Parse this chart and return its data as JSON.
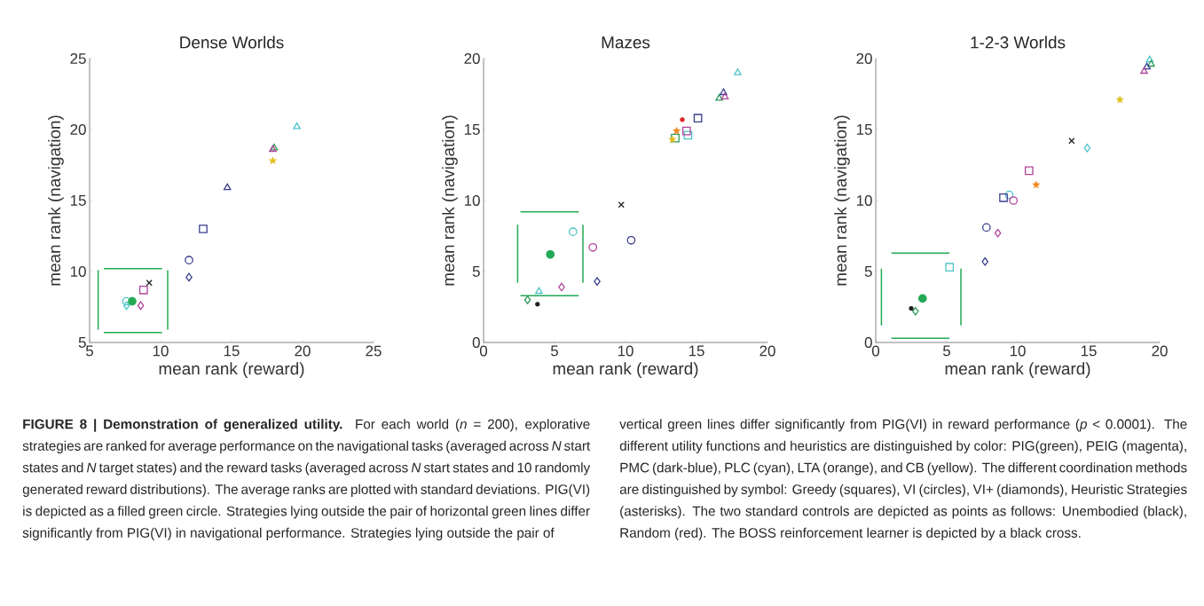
{
  "chart_data": [
    {
      "type": "scatter",
      "title": "Dense Worlds",
      "xlabel": "mean rank (reward)",
      "ylabel": "mean rank (navigation)",
      "xlim": [
        5,
        25
      ],
      "ylim": [
        5,
        25
      ],
      "xticks": [
        5,
        10,
        15,
        20,
        25
      ],
      "yticks": [
        5,
        10,
        15,
        20,
        25
      ],
      "series": [
        {
          "color": "#4cc4c8",
          "marker": "triangle",
          "x": [
            19.6
          ],
          "values": [
            20.2
          ]
        },
        {
          "color": "#4cc4c8",
          "marker": "circle",
          "x": [
            7.6
          ],
          "values": [
            7.9
          ]
        },
        {
          "color": "#4cc4c8",
          "marker": "diamond",
          "x": [
            7.6
          ],
          "values": [
            7.6
          ]
        },
        {
          "color": "#2e9a5a",
          "marker": "triangle",
          "x": [
            18.0
          ],
          "values": [
            18.7
          ]
        },
        {
          "color": "#b0449a",
          "marker": "triangle",
          "x": [
            17.9
          ],
          "values": [
            18.6
          ]
        },
        {
          "color": "#b0449a",
          "marker": "square",
          "x": [
            8.8
          ],
          "values": [
            8.7
          ]
        },
        {
          "color": "#b0449a",
          "marker": "diamond",
          "x": [
            8.6
          ],
          "values": [
            7.6
          ]
        },
        {
          "color": "#e0c020",
          "marker": "star",
          "x": [
            17.9
          ],
          "values": [
            17.8
          ]
        },
        {
          "color": "#3a3f8f",
          "marker": "triangle",
          "x": [
            14.7
          ],
          "values": [
            15.9
          ]
        },
        {
          "color": "#3a3f8f",
          "marker": "square",
          "x": [
            13.0
          ],
          "values": [
            13.0
          ]
        },
        {
          "color": "#3a3f8f",
          "marker": "circle",
          "x": [
            12.0
          ],
          "values": [
            10.8
          ]
        },
        {
          "color": "#3a3f8f",
          "marker": "diamond",
          "x": [
            12.0
          ],
          "values": [
            9.6
          ]
        },
        {
          "color": "#222222",
          "marker": "cross",
          "x": [
            9.2
          ],
          "values": [
            9.2
          ]
        },
        {
          "color": "#22aa55",
          "x": [
            8.0
          ],
          "values": [
            7.9
          ]
        },
        {
          "type": "line",
          "color": "#22aa55",
          "x": [
            6.0,
            10.1
          ],
          "values": [
            10.2,
            10.2
          ]
        },
        {
          "type": "line",
          "color": "#22aa55",
          "x": [
            6.0,
            10.1
          ],
          "values": [
            5.7,
            5.7
          ]
        },
        {
          "type": "line",
          "color": "#22aa55",
          "x": [
            5.6,
            5.6
          ],
          "values": [
            5.9,
            10.1
          ]
        },
        {
          "type": "line",
          "color": "#22aa55",
          "x": [
            10.5,
            10.5
          ],
          "values": [
            5.9,
            10.1
          ]
        }
      ]
    },
    {
      "type": "scatter",
      "title": "Mazes",
      "xlabel": "mean rank (reward)",
      "ylabel": "mean rank (navigation)",
      "xlim": [
        0,
        20
      ],
      "ylim": [
        0,
        20
      ],
      "xticks": [
        0,
        5,
        10,
        15,
        20
      ],
      "yticks": [
        0,
        5,
        10,
        15,
        20
      ],
      "series": [
        {
          "color": "#4cc4c8",
          "marker": "triangle",
          "x": [
            17.9,
            3.9
          ],
          "values": [
            19.0,
            3.6
          ]
        },
        {
          "color": "#4cc4c8",
          "marker": "square",
          "x": [
            14.4
          ],
          "values": [
            14.6
          ]
        },
        {
          "color": "#4cc4c8",
          "marker": "circle",
          "x": [
            6.3
          ],
          "values": [
            7.8
          ]
        },
        {
          "color": "#3a3f8f",
          "marker": "triangle",
          "x": [
            16.9
          ],
          "values": [
            17.6
          ]
        },
        {
          "color": "#3a3f8f",
          "marker": "square",
          "x": [
            15.1
          ],
          "values": [
            15.8
          ]
        },
        {
          "color": "#3a3f8f",
          "marker": "circle",
          "x": [
            10.4
          ],
          "values": [
            7.2
          ]
        },
        {
          "color": "#3a3f8f",
          "marker": "diamond",
          "x": [
            8.0
          ],
          "values": [
            4.3
          ]
        },
        {
          "color": "#2e9a5a",
          "marker": "triangle",
          "x": [
            16.6
          ],
          "values": [
            17.2
          ]
        },
        {
          "color": "#b0449a",
          "marker": "triangle",
          "x": [
            17.0
          ],
          "values": [
            17.3
          ]
        },
        {
          "color": "#b0449a",
          "marker": "square",
          "x": [
            14.3
          ],
          "values": [
            14.9
          ]
        },
        {
          "color": "#b0449a",
          "marker": "circle",
          "x": [
            7.7
          ],
          "values": [
            6.7
          ]
        },
        {
          "color": "#b0449a",
          "marker": "diamond",
          "x": [
            5.5
          ],
          "values": [
            3.9
          ]
        },
        {
          "color": "#2e9a5a",
          "marker": "square",
          "x": [
            13.5
          ],
          "values": [
            14.4
          ]
        },
        {
          "color": "#2e9a5a",
          "marker": "diamond",
          "x": [
            3.1
          ],
          "values": [
            3.0
          ]
        },
        {
          "color": "#dd2222",
          "x": [
            14.0
          ],
          "values": [
            15.7
          ]
        },
        {
          "color": "#f08a24",
          "marker": "star",
          "x": [
            13.6
          ],
          "values": [
            14.9
          ]
        },
        {
          "color": "#e0c020",
          "marker": "star",
          "x": [
            13.3
          ],
          "values": [
            14.3
          ]
        },
        {
          "color": "#222222",
          "marker": "cross",
          "x": [
            9.7
          ],
          "values": [
            9.7
          ]
        },
        {
          "color": "#222222",
          "x": [
            3.8
          ],
          "values": [
            2.7
          ]
        },
        {
          "color": "#22aa55",
          "x": [
            4.7
          ],
          "values": [
            6.2
          ]
        },
        {
          "type": "line",
          "color": "#22aa55",
          "x": [
            2.6,
            6.7
          ],
          "values": [
            9.2,
            9.2
          ]
        },
        {
          "type": "line",
          "color": "#22aa55",
          "x": [
            2.6,
            6.7
          ],
          "values": [
            3.3,
            3.3
          ]
        },
        {
          "type": "line",
          "color": "#22aa55",
          "x": [
            2.4,
            2.4
          ],
          "values": [
            4.2,
            8.3
          ]
        },
        {
          "type": "line",
          "color": "#22aa55",
          "x": [
            7.0,
            7.0
          ],
          "values": [
            4.2,
            8.3
          ]
        }
      ]
    },
    {
      "type": "scatter",
      "title": "1-2-3 Worlds",
      "xlabel": "mean rank (reward)",
      "ylabel": "mean rank (navigation)",
      "xlim": [
        0,
        20
      ],
      "ylim": [
        0,
        20
      ],
      "xticks": [
        0,
        5,
        10,
        15,
        20
      ],
      "yticks": [
        0,
        5,
        10,
        15,
        20
      ],
      "series": [
        {
          "color": "#4cc4c8",
          "marker": "triangle",
          "x": [
            19.3
          ],
          "values": [
            19.9
          ]
        },
        {
          "color": "#2e9a5a",
          "marker": "triangle",
          "x": [
            19.4
          ],
          "values": [
            19.6
          ]
        },
        {
          "color": "#3a3f8f",
          "marker": "triangle",
          "x": [
            19.1
          ],
          "values": [
            19.4
          ]
        },
        {
          "color": "#b0449a",
          "marker": "triangle",
          "x": [
            18.9
          ],
          "values": [
            19.1
          ]
        },
        {
          "color": "#4cc4c8",
          "marker": "diamond",
          "x": [
            14.9
          ],
          "values": [
            13.7
          ]
        },
        {
          "color": "#4cc4c8",
          "marker": "circle",
          "x": [
            9.4
          ],
          "values": [
            10.4
          ]
        },
        {
          "color": "#4cc4c8",
          "marker": "square",
          "x": [
            5.2
          ],
          "values": [
            5.3
          ]
        },
        {
          "color": "#3a3f8f",
          "marker": "square",
          "x": [
            9.0
          ],
          "values": [
            10.2
          ]
        },
        {
          "color": "#3a3f8f",
          "marker": "circle",
          "x": [
            7.8
          ],
          "values": [
            8.1
          ]
        },
        {
          "color": "#3a3f8f",
          "marker": "diamond",
          "x": [
            7.7
          ],
          "values": [
            5.7
          ]
        },
        {
          "color": "#b0449a",
          "marker": "square",
          "x": [
            10.8
          ],
          "values": [
            12.1
          ]
        },
        {
          "color": "#b0449a",
          "marker": "circle",
          "x": [
            9.7
          ],
          "values": [
            10.0
          ]
        },
        {
          "color": "#b0449a",
          "marker": "diamond",
          "x": [
            8.6
          ],
          "values": [
            7.7
          ]
        },
        {
          "color": "#e0c020",
          "marker": "star",
          "x": [
            17.2
          ],
          "values": [
            17.1
          ]
        },
        {
          "color": "#f08a24",
          "marker": "star",
          "x": [
            11.3
          ],
          "values": [
            11.1
          ]
        },
        {
          "color": "#222222",
          "marker": "cross",
          "x": [
            13.8
          ],
          "values": [
            14.2
          ]
        },
        {
          "color": "#2e9a5a",
          "marker": "diamond",
          "x": [
            2.8
          ],
          "values": [
            2.2
          ]
        },
        {
          "color": "#222222",
          "x": [
            2.5
          ],
          "values": [
            2.4
          ]
        },
        {
          "color": "#22aa55",
          "x": [
            3.3
          ],
          "values": [
            3.1
          ]
        },
        {
          "type": "line",
          "color": "#22aa55",
          "x": [
            1.1,
            5.2
          ],
          "values": [
            6.3,
            6.3
          ]
        },
        {
          "type": "line",
          "color": "#22aa55",
          "x": [
            1.1,
            5.2
          ],
          "values": [
            0.3,
            0.3
          ]
        },
        {
          "type": "line",
          "color": "#22aa55",
          "x": [
            0.4,
            0.4
          ],
          "values": [
            1.2,
            5.2
          ]
        },
        {
          "type": "line",
          "color": "#22aa55",
          "x": [
            6.0,
            6.0
          ],
          "values": [
            1.2,
            5.2
          ]
        }
      ],
      "annotations": [
        "**FIGURE 8 | Demonstration of generalized utility.** For each world (*n* = 200), explorative strategies are ranked for average performance on the navigational tasks (averaged across *N* start states and *N* target states) and the reward tasks (averaged across *N* start states and 10 randomly generated reward distributions). The average ranks are plotted with standard deviations. PIG(VI) is depicted as a filled green circle. Strategies lying outside the pair of horizontal green lines differ significantly from PIG(VI) in navigational performance. Strategies lying outside the pair of",
        "vertical green lines differ significantly from PIG(VI) in reward performance (*p* < 0.0001). The different utility functions and heuristics are distinguished by color: PIG(green), PEIG (magenta), PMC (dark-blue), PLC (cyan), LTA (orange), and CB (yellow). The different coordination methods are distinguished by symbol: Greedy (squares), VI (circles), VI+ (diamonds), Heuristic Strategies (asterisks). The two standard controls are depicted as points as follows: Unembodied (black), Random (red). The BOSS reinforcement learner is depicted by a black cross."
      ]
    }
  ]
}
